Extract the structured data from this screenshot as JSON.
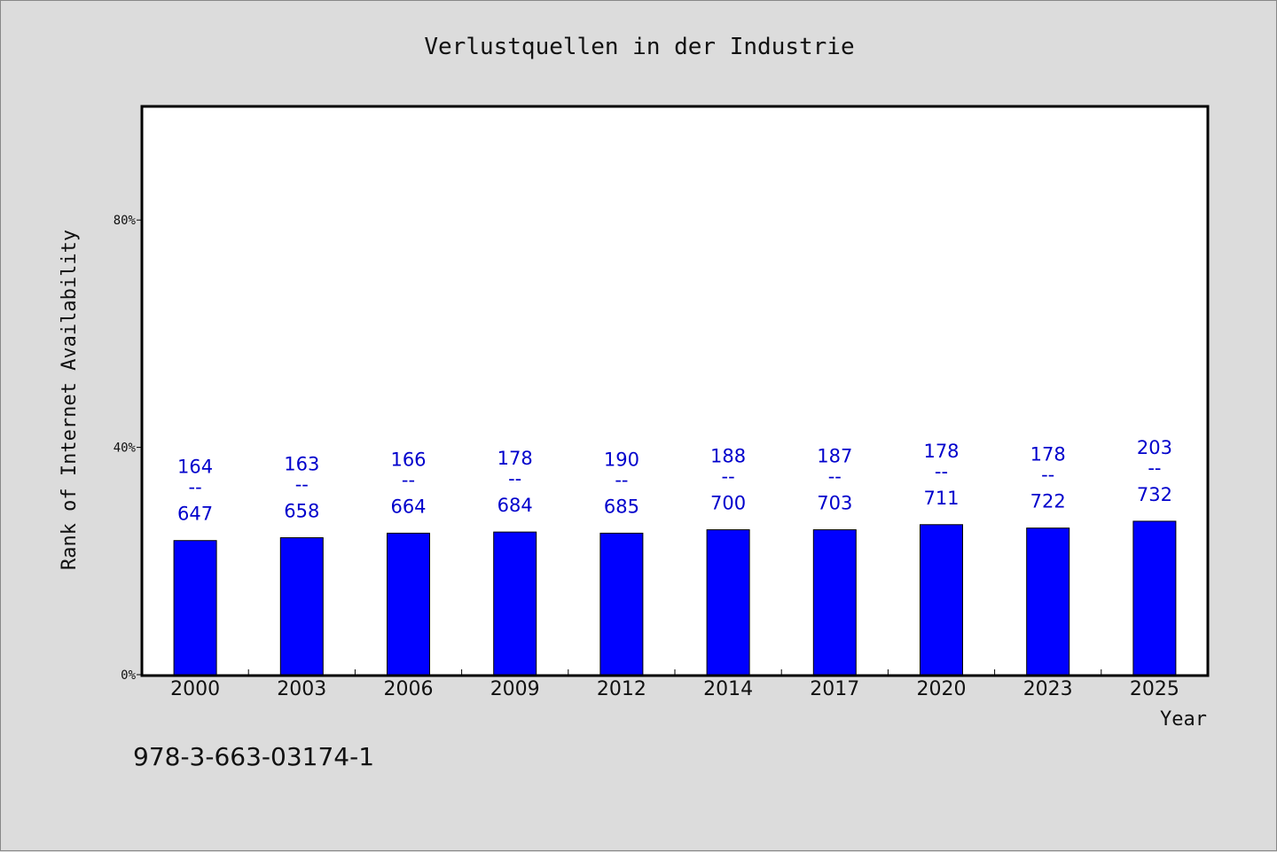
{
  "chart_data": {
    "type": "bar",
    "title": "Verlustquellen in der Industrie",
    "xlabel": "Year",
    "ylabel": "Rank of Internet Availability",
    "categories": [
      "2000",
      "2003",
      "2006",
      "2009",
      "2012",
      "2014",
      "2017",
      "2020",
      "2023",
      "2025"
    ],
    "values": [
      23.6,
      24.1,
      24.9,
      25.1,
      24.9,
      25.5,
      25.5,
      26.4,
      25.8,
      27.0
    ],
    "value_unit": "%",
    "data_labels": [
      {
        "top": "164",
        "sep": "--",
        "bottom": "647"
      },
      {
        "top": "163",
        "sep": "--",
        "bottom": "658"
      },
      {
        "top": "166",
        "sep": "--",
        "bottom": "664"
      },
      {
        "top": "178",
        "sep": "--",
        "bottom": "684"
      },
      {
        "top": "190",
        "sep": "--",
        "bottom": "685"
      },
      {
        "top": "188",
        "sep": "--",
        "bottom": "700"
      },
      {
        "top": "187",
        "sep": "--",
        "bottom": "703"
      },
      {
        "top": "178",
        "sep": "--",
        "bottom": "711"
      },
      {
        "top": "178",
        "sep": "--",
        "bottom": "722"
      },
      {
        "top": "203",
        "sep": "--",
        "bottom": "732"
      }
    ],
    "ylim": [
      0,
      100
    ],
    "y_ticks": [
      {
        "value": 0,
        "label": "0%"
      },
      {
        "value": 40,
        "label": "40%"
      },
      {
        "value": 80,
        "label": "80%"
      }
    ],
    "grid": false,
    "legend": "none",
    "colors": {
      "bar": "#0000ff",
      "data_label": "#0000cc",
      "background": "#dcdcdc",
      "plot_background": "#ffffff"
    }
  },
  "footer": {
    "isbn": "978-3-663-03174-1"
  }
}
